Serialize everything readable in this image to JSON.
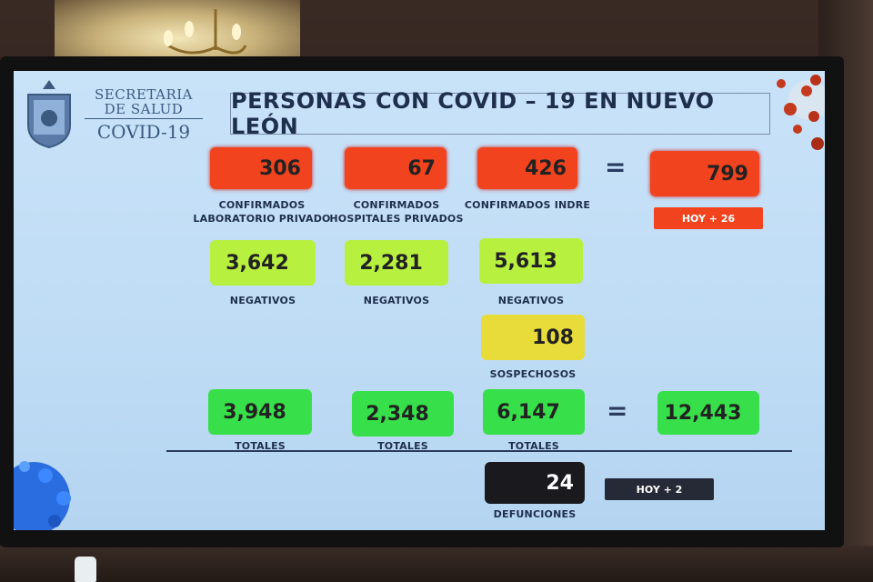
{
  "org": {
    "line1": "SECRETARIA",
    "line2": "DE SALUD",
    "line3": "COVID-19"
  },
  "title": "PERSONAS CON COVID – 19 EN NUEVO LEÓN",
  "confirmed": [
    {
      "value": "306",
      "label1": "CONFIRMADOS",
      "label2": "LABORATORIO PRIVADO"
    },
    {
      "value": "67",
      "label1": "CONFIRMADOS",
      "label2": "HOSPITALES PRIVADOS"
    },
    {
      "value": "426",
      "label1": "CONFIRMADOS INDRE",
      "label2": ""
    }
  ],
  "confirmed_total": {
    "value": "799",
    "badge": "HOY + 26"
  },
  "negatives": [
    {
      "value": "3,642",
      "label": "NEGATIVOS"
    },
    {
      "value": "2,281",
      "label": "NEGATIVOS"
    },
    {
      "value": "5,613",
      "label": "NEGATIVOS"
    }
  ],
  "suspected": {
    "value": "108",
    "label": "SOSPECHOSOS"
  },
  "totals": [
    {
      "value": "3,948",
      "label": "TOTALES"
    },
    {
      "value": "2,348",
      "label": "TOTALES"
    },
    {
      "value": "6,147",
      "label": "TOTALES"
    }
  ],
  "grand_total": {
    "value": "12,443"
  },
  "deaths": {
    "value": "24",
    "label": "DEFUNCIONES",
    "badge": "HOY + 2"
  },
  "equals": "=",
  "colors": {
    "red": "#f0431e",
    "lime": "#b8f040",
    "yellow": "#e8dc3a",
    "green": "#37e04a",
    "screen": "#c8e2f8"
  },
  "icons": [
    "shield-logo-icon",
    "virus-icon"
  ]
}
